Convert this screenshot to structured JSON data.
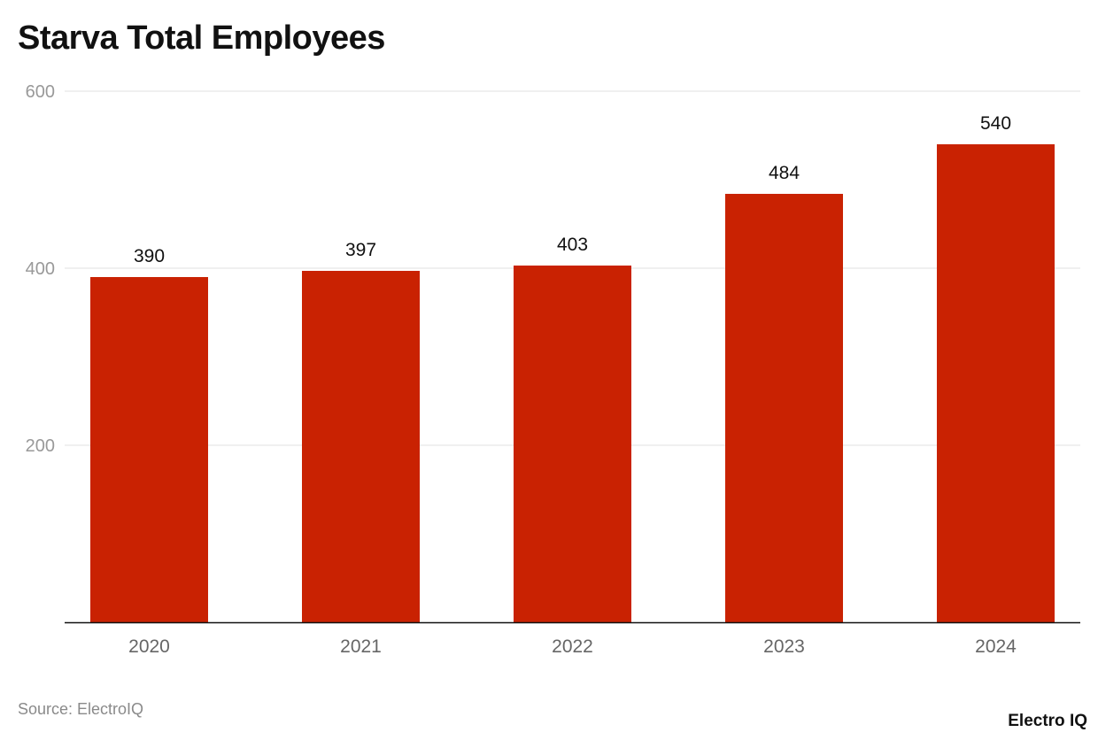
{
  "chart_data": {
    "type": "bar",
    "title": "Starva Total Employees",
    "categories": [
      "2020",
      "2021",
      "2022",
      "2023",
      "2024"
    ],
    "values": [
      390,
      397,
      403,
      484,
      540
    ],
    "ylim": [
      0,
      600
    ],
    "yticks": [
      200,
      400,
      600
    ],
    "grid": true,
    "bar_color": "#C92202",
    "xlabel": "",
    "ylabel": ""
  },
  "source": "Source: ElectroIQ",
  "logo": "Electro IQ"
}
